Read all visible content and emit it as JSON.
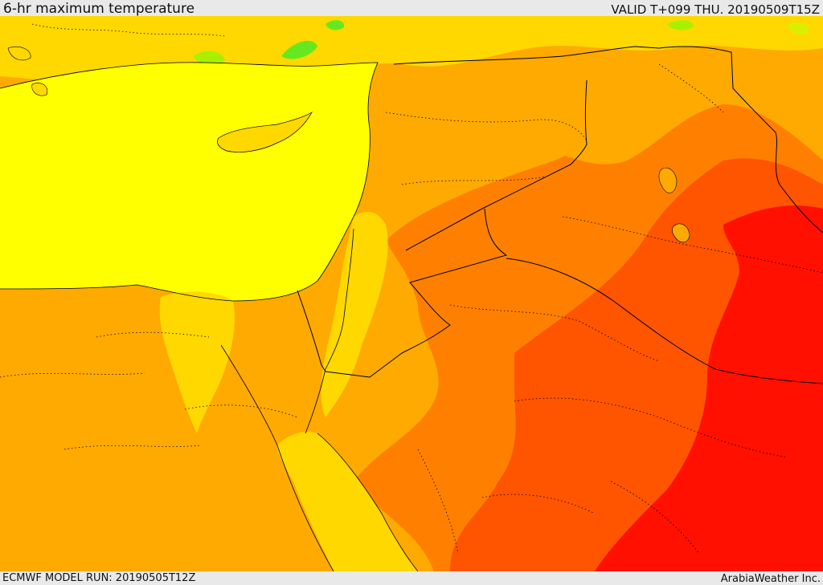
{
  "header": {
    "title": "6-hr maximum temperature",
    "valid_time": "VALID T+099 THU. 20190509T15Z"
  },
  "footer": {
    "model_run": "ECMWF MODEL RUN: 20190505T12Z",
    "credit": "ArabiaWeather Inc."
  },
  "colors": {
    "sea": "#ffff00",
    "very_warm": "#ffd800",
    "warm": "#ffaa00",
    "hot": "#ff8000",
    "very_hot": "#ff5400",
    "extreme": "#ff1000",
    "mild": "#d8f000",
    "cool": "#a8f000",
    "cooler": "#66e820",
    "border": "#000000"
  }
}
